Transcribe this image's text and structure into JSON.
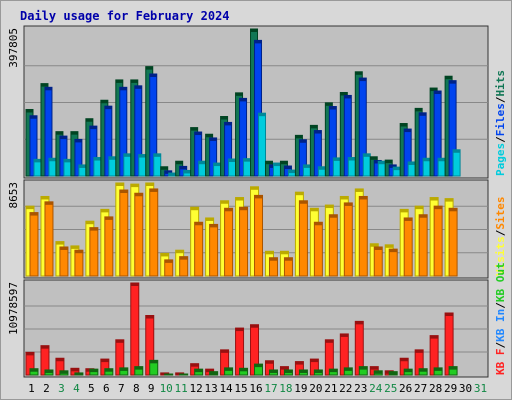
{
  "title": "Daily usage for February 2024",
  "colors": {
    "pages": "#00ccdd",
    "pages_dark": "#008899",
    "files": "#0044ee",
    "files_dark": "#002288",
    "hits": "#117755",
    "hits_dark": "#004422",
    "visits": "#ffff33",
    "visits_dark": "#bbaa00",
    "sites": "#ff8800",
    "sites_dark": "#aa5500",
    "kbin": "#2288ff",
    "kbout": "#22cc22",
    "kbout_dark": "#116611",
    "kbf": "#ff2222",
    "kbf_dark": "#991111",
    "weekday": "#000000",
    "weekend": "#118844",
    "panel": "#c0c0c0",
    "grid": "#888888"
  },
  "chart_data": [
    {
      "type": "bar",
      "panel": "top",
      "y_max_label": "397805",
      "ylim": [
        0,
        397805
      ],
      "grid": true,
      "legend": [
        {
          "label": "Pages",
          "color_key": "pages"
        },
        {
          "label": "/",
          "color_key": "slash"
        },
        {
          "label": "Files",
          "color_key": "files"
        },
        {
          "label": "/",
          "color_key": "slash"
        },
        {
          "label": "Hits",
          "color_key": "hits"
        }
      ],
      "categories": [
        "1",
        "2",
        "3",
        "4",
        "5",
        "6",
        "7",
        "8",
        "9",
        "10",
        "11",
        "12",
        "13",
        "14",
        "15",
        "16",
        "17",
        "18",
        "19",
        "20",
        "21",
        "22",
        "23",
        "24",
        "25",
        "26",
        "27",
        "28",
        "29",
        "30",
        "31"
      ],
      "series": [
        {
          "name": "Hits",
          "color_key": "hits",
          "values": [
            180000,
            250000,
            120000,
            120000,
            155000,
            205000,
            260000,
            260000,
            296000,
            25000,
            40000,
            131000,
            113000,
            161000,
            225000,
            397805,
            40000,
            40000,
            110000,
            137000,
            198000,
            226000,
            282000,
            52000,
            43000,
            142000,
            183000,
            238000,
            270000,
            0,
            0
          ]
        },
        {
          "name": "Files",
          "color_key": "files",
          "values": [
            163000,
            240000,
            108000,
            99000,
            135000,
            189000,
            240000,
            244000,
            276000,
            14000,
            26000,
            119000,
            103000,
            145000,
            210000,
            367000,
            30000,
            27000,
            98000,
            123000,
            188000,
            218000,
            265000,
            42000,
            30000,
            127000,
            171000,
            230000,
            258000,
            0,
            0
          ]
        },
        {
          "name": "Pages",
          "color_key": "pages",
          "values": [
            45000,
            48000,
            45000,
            30000,
            50000,
            52000,
            60000,
            58000,
            60000,
            8000,
            15000,
            40000,
            35000,
            46000,
            47000,
            170000,
            35000,
            16000,
            30000,
            25000,
            49000,
            50000,
            60000,
            40000,
            24000,
            38000,
            48000,
            48000,
            71000,
            0,
            0
          ]
        }
      ]
    },
    {
      "type": "bar",
      "panel": "middle",
      "y_max_label": "8653",
      "ylim": [
        0,
        8653
      ],
      "grid": true,
      "legend": [
        {
          "label": "Visits",
          "color_key": "visits"
        },
        {
          "label": "/",
          "color_key": "slash"
        },
        {
          "label": "Sites",
          "color_key": "sites"
        }
      ],
      "categories": [
        "1",
        "2",
        "3",
        "4",
        "5",
        "6",
        "7",
        "8",
        "9",
        "10",
        "11",
        "12",
        "13",
        "14",
        "15",
        "16",
        "17",
        "18",
        "19",
        "20",
        "21",
        "22",
        "23",
        "24",
        "25",
        "26",
        "27",
        "28",
        "29",
        "30",
        "31"
      ],
      "series": [
        {
          "name": "Visits",
          "color_key": "visits",
          "values": [
            6500,
            7400,
            3200,
            2800,
            5100,
            6200,
            8653,
            8550,
            8653,
            2100,
            2400,
            6400,
            5400,
            7000,
            7300,
            8300,
            2300,
            2300,
            7800,
            6300,
            6600,
            7400,
            8100,
            3000,
            2900,
            6200,
            6500,
            7300,
            7200,
            0,
            0
          ]
        },
        {
          "name": "Sites",
          "color_key": "sites",
          "values": [
            5900,
            6900,
            2700,
            2400,
            4500,
            5500,
            8000,
            7700,
            8100,
            1500,
            1800,
            5000,
            4800,
            6300,
            6400,
            7500,
            1700,
            1700,
            7000,
            5000,
            5700,
            6800,
            7400,
            2700,
            2500,
            5400,
            5700,
            6500,
            6300,
            0,
            0
          ]
        }
      ]
    },
    {
      "type": "bar",
      "panel": "bottom",
      "y_max_label": "10978597",
      "ylim": [
        0,
        10978597
      ],
      "grid": true,
      "legend": [
        {
          "label": "KB F",
          "color_key": "kbf"
        },
        {
          "label": "/",
          "color_key": "slash"
        },
        {
          "label": "KB In",
          "color_key": "kbin"
        },
        {
          "label": "/",
          "color_key": "slash"
        },
        {
          "label": "KB Out",
          "color_key": "kbout"
        }
      ],
      "categories": [
        "1",
        "2",
        "3",
        "4",
        "5",
        "6",
        "7",
        "8",
        "9",
        "10",
        "11",
        "12",
        "13",
        "14",
        "15",
        "16",
        "17",
        "18",
        "19",
        "20",
        "21",
        "22",
        "23",
        "24",
        "25",
        "26",
        "27",
        "28",
        "29",
        "30",
        "31"
      ],
      "series": [
        {
          "name": "KB F",
          "color_key": "kbf",
          "values": [
            2700000,
            3500000,
            2000000,
            800000,
            750000,
            1900000,
            4200000,
            10978597,
            7100000,
            250000,
            250000,
            1350000,
            700000,
            3000000,
            5600000,
            6000000,
            1700000,
            1000000,
            1600000,
            1900000,
            4200000,
            4900000,
            6400000,
            1000000,
            500000,
            2000000,
            3000000,
            4700000,
            7400000,
            0,
            0
          ]
        },
        {
          "name": "KB Out",
          "color_key": "kbout",
          "values": [
            750000,
            600000,
            500000,
            250000,
            700000,
            750000,
            850000,
            1000000,
            1750000,
            100000,
            100000,
            700000,
            400000,
            850000,
            800000,
            1300000,
            600000,
            600000,
            600000,
            600000,
            700000,
            850000,
            1000000,
            500000,
            400000,
            700000,
            750000,
            850000,
            1000000,
            0,
            0
          ]
        }
      ]
    }
  ]
}
